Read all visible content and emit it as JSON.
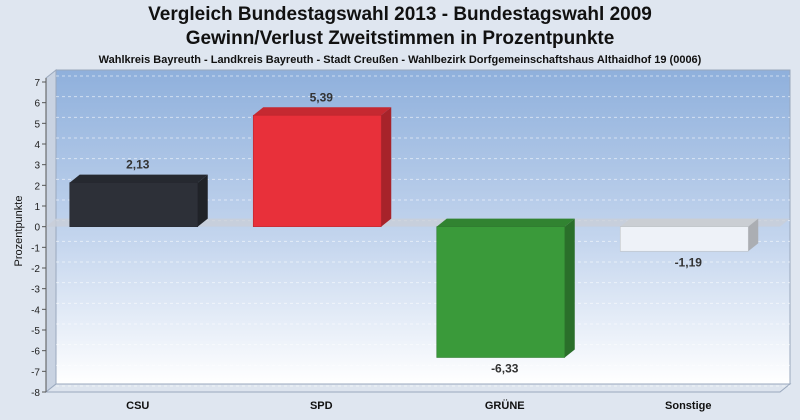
{
  "header": {
    "title_line1": "Vergleich Bundestagswahl 2013 - Bundestagswahl 2009",
    "title_line2": "Gewinn/Verlust Zweitstimmen in Prozentpunkte",
    "subtitle": "Wahlkreis Bayreuth - Landkreis Bayreuth - Stadt Creußen - Wahlbezirk Dorfgemeinschaftshaus Althaidhof 19 (0006)"
  },
  "chart_data": {
    "type": "bar",
    "title": "Vergleich Bundestagswahl 2013 - Bundestagswahl 2009",
    "subtitle": "Gewinn/Verlust Zweitstimmen in Prozentpunkte",
    "xlabel": "",
    "ylabel": "Prozentpunkte",
    "ylim": [
      -8,
      7
    ],
    "yticks": [
      7,
      6,
      5,
      4,
      3,
      2,
      1,
      0,
      -1,
      -2,
      -3,
      -4,
      -5,
      -6,
      -7,
      -8
    ],
    "categories": [
      "CSU",
      "SPD",
      "GRÜNE",
      "Sonstige"
    ],
    "values": [
      2.13,
      5.39,
      -6.33,
      -1.19
    ],
    "value_labels": [
      "2,13",
      "5,39",
      "-6,33",
      "-1,19"
    ],
    "colors": [
      "#2d3038",
      "#e8303a",
      "#3a9a3a",
      "#eef2f8"
    ],
    "grid": true,
    "legend": "none"
  }
}
